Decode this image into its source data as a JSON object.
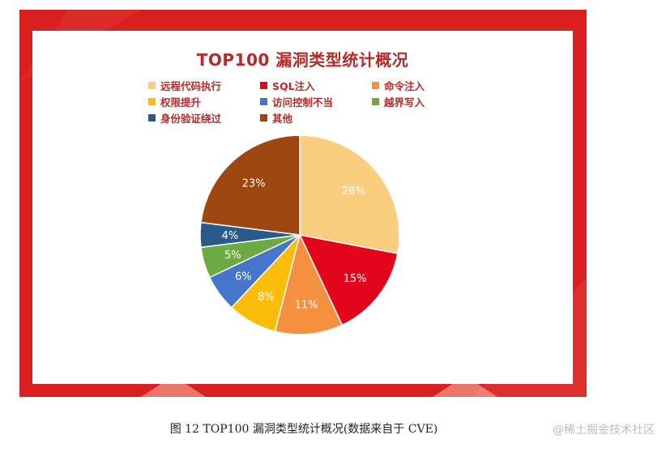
{
  "caption": "图 12 TOP100 漏洞类型统计概况(数据来自于 CVE)",
  "watermark": "@稀土掘金技术社区",
  "chart_data": {
    "type": "pie",
    "title": "TOP100 漏洞类型统计概况",
    "legend_position": "top",
    "categories": [
      "远程代码执行",
      "SQL注入",
      "命令注入",
      "权限提升",
      "访问控制不当",
      "越界写入",
      "身份验证绕过",
      "其他"
    ],
    "values": [
      28,
      15,
      11,
      8,
      6,
      5,
      4,
      23
    ],
    "value_labels": [
      "28%",
      "15%",
      "11%",
      "8%",
      "6%",
      "5%",
      "4%",
      "23%"
    ],
    "colors": [
      "#f9ce7e",
      "#e3051c",
      "#f4903f",
      "#fbbd09",
      "#4675cc",
      "#6caa44",
      "#2a5a8a",
      "#9e4610"
    ]
  },
  "colors": {
    "frame": "#d9201f",
    "title_text": "#b42b2b"
  }
}
